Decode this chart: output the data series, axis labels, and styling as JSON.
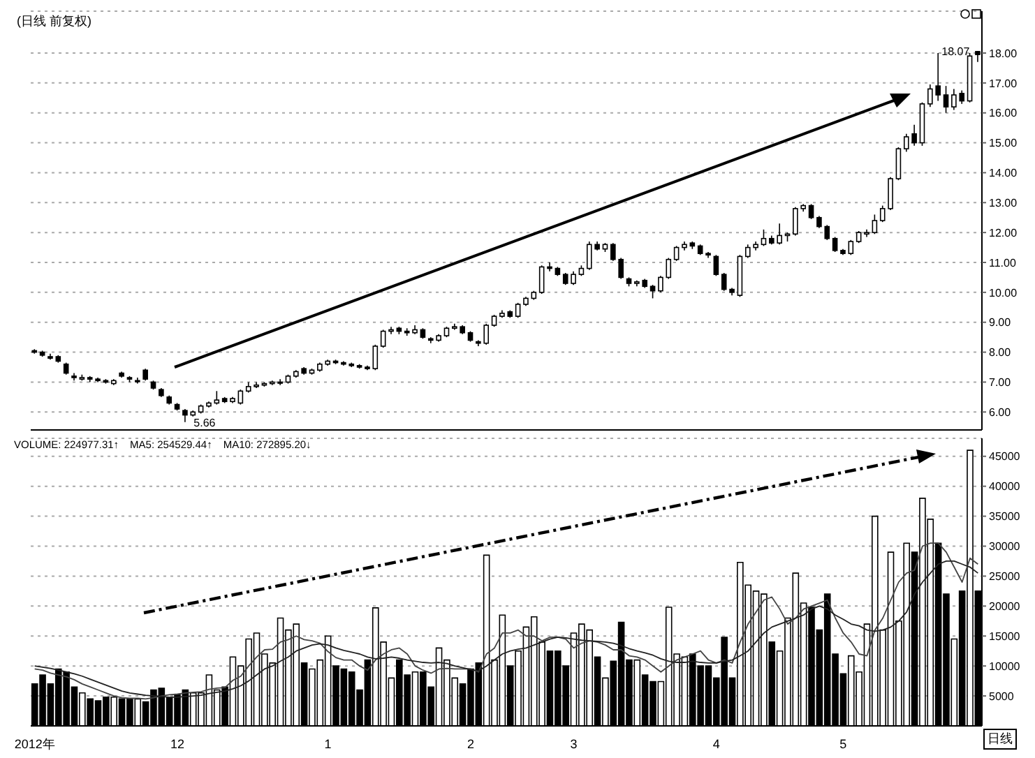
{
  "chart_data": [
    {
      "type": "candlestick",
      "title": "(日线 前复权)",
      "color": "#000000",
      "ohlc": [
        [
          8.05,
          8.1,
          7.95,
          8.0
        ],
        [
          8.0,
          8.05,
          7.85,
          7.9
        ],
        [
          7.85,
          7.95,
          7.75,
          7.8
        ],
        [
          7.85,
          7.9,
          7.65,
          7.7
        ],
        [
          7.6,
          7.65,
          7.25,
          7.3
        ],
        [
          7.2,
          7.3,
          7.05,
          7.15
        ],
        [
          7.1,
          7.25,
          7.05,
          7.15
        ],
        [
          7.15,
          7.2,
          7.0,
          7.1
        ],
        [
          7.1,
          7.15,
          7.0,
          7.05
        ],
        [
          7.05,
          7.1,
          6.95,
          7.0
        ],
        [
          6.95,
          7.1,
          6.9,
          7.05
        ],
        [
          7.3,
          7.35,
          7.15,
          7.2
        ],
        [
          7.15,
          7.2,
          7.0,
          7.1
        ],
        [
          7.05,
          7.15,
          6.95,
          7.05
        ],
        [
          7.4,
          7.45,
          7.05,
          7.1
        ],
        [
          7.0,
          7.05,
          6.75,
          6.8
        ],
        [
          6.75,
          6.8,
          6.5,
          6.55
        ],
        [
          6.5,
          6.55,
          6.25,
          6.3
        ],
        [
          6.25,
          6.3,
          6.05,
          6.1
        ],
        [
          6.05,
          6.1,
          5.66,
          5.9
        ],
        [
          5.9,
          6.05,
          5.85,
          6.0
        ],
        [
          6.0,
          6.25,
          5.95,
          6.2
        ],
        [
          6.2,
          6.35,
          6.15,
          6.3
        ],
        [
          6.3,
          6.7,
          6.25,
          6.4
        ],
        [
          6.45,
          6.5,
          6.3,
          6.35
        ],
        [
          6.35,
          6.5,
          6.3,
          6.45
        ],
        [
          6.3,
          6.75,
          6.25,
          6.7
        ],
        [
          6.7,
          7.0,
          6.65,
          6.85
        ],
        [
          6.85,
          7.0,
          6.8,
          6.9
        ],
        [
          6.9,
          7.0,
          6.85,
          6.95
        ],
        [
          6.95,
          7.05,
          6.9,
          7.0
        ],
        [
          7.0,
          7.1,
          6.9,
          7.0
        ],
        [
          7.0,
          7.25,
          6.95,
          7.2
        ],
        [
          7.2,
          7.4,
          7.15,
          7.35
        ],
        [
          7.45,
          7.5,
          7.25,
          7.3
        ],
        [
          7.3,
          7.45,
          7.25,
          7.4
        ],
        [
          7.4,
          7.65,
          7.35,
          7.6
        ],
        [
          7.6,
          7.75,
          7.55,
          7.7
        ],
        [
          7.7,
          7.75,
          7.6,
          7.65
        ],
        [
          7.65,
          7.7,
          7.55,
          7.6
        ],
        [
          7.6,
          7.65,
          7.5,
          7.55
        ],
        [
          7.55,
          7.6,
          7.45,
          7.5
        ],
        [
          7.5,
          7.55,
          7.4,
          7.45
        ],
        [
          7.45,
          8.25,
          7.4,
          8.2
        ],
        [
          8.2,
          8.75,
          8.15,
          8.7
        ],
        [
          8.7,
          8.85,
          8.6,
          8.75
        ],
        [
          8.8,
          8.85,
          8.6,
          8.7
        ],
        [
          8.7,
          8.8,
          8.55,
          8.65
        ],
        [
          8.65,
          8.9,
          8.6,
          8.75
        ],
        [
          8.75,
          8.8,
          8.45,
          8.5
        ],
        [
          8.45,
          8.5,
          8.3,
          8.4
        ],
        [
          8.4,
          8.6,
          8.35,
          8.55
        ],
        [
          8.55,
          8.85,
          8.5,
          8.8
        ],
        [
          8.8,
          8.95,
          8.75,
          8.85
        ],
        [
          8.85,
          8.9,
          8.6,
          8.65
        ],
        [
          8.65,
          8.7,
          8.35,
          8.4
        ],
        [
          8.35,
          8.4,
          8.2,
          8.3
        ],
        [
          8.3,
          8.95,
          8.25,
          8.9
        ],
        [
          8.9,
          9.25,
          8.85,
          9.2
        ],
        [
          9.2,
          9.4,
          9.15,
          9.3
        ],
        [
          9.35,
          9.4,
          9.15,
          9.2
        ],
        [
          9.2,
          9.65,
          9.15,
          9.6
        ],
        [
          9.6,
          9.85,
          9.55,
          9.8
        ],
        [
          9.8,
          10.05,
          9.75,
          10.0
        ],
        [
          10.0,
          10.9,
          9.95,
          10.85
        ],
        [
          10.85,
          11.0,
          10.7,
          10.8
        ],
        [
          10.8,
          10.85,
          10.55,
          10.6
        ],
        [
          10.6,
          10.65,
          10.25,
          10.3
        ],
        [
          10.3,
          10.7,
          10.25,
          10.6
        ],
        [
          10.6,
          10.9,
          10.55,
          10.8
        ],
        [
          10.8,
          11.7,
          10.75,
          11.6
        ],
        [
          11.6,
          11.7,
          11.4,
          11.45
        ],
        [
          11.45,
          11.65,
          11.35,
          11.6
        ],
        [
          11.6,
          11.65,
          11.05,
          11.1
        ],
        [
          11.1,
          11.15,
          10.45,
          10.5
        ],
        [
          10.45,
          10.5,
          10.2,
          10.3
        ],
        [
          10.3,
          10.4,
          10.2,
          10.35
        ],
        [
          10.4,
          10.45,
          10.15,
          10.2
        ],
        [
          10.2,
          10.25,
          9.8,
          10.05
        ],
        [
          10.05,
          10.55,
          10.0,
          10.5
        ],
        [
          10.5,
          11.15,
          10.45,
          11.1
        ],
        [
          11.1,
          11.55,
          11.05,
          11.5
        ],
        [
          11.5,
          11.7,
          11.4,
          11.6
        ],
        [
          11.65,
          11.7,
          11.45,
          11.55
        ],
        [
          11.55,
          11.6,
          11.25,
          11.3
        ],
        [
          11.3,
          11.35,
          11.15,
          11.25
        ],
        [
          11.2,
          11.25,
          10.55,
          10.6
        ],
        [
          10.6,
          10.65,
          10.05,
          10.1
        ],
        [
          10.1,
          10.15,
          9.9,
          10.0
        ],
        [
          9.9,
          11.25,
          9.85,
          11.2
        ],
        [
          11.2,
          11.6,
          11.15,
          11.5
        ],
        [
          11.5,
          11.7,
          11.4,
          11.6
        ],
        [
          11.6,
          12.1,
          11.55,
          11.8
        ],
        [
          11.8,
          11.9,
          11.6,
          11.65
        ],
        [
          11.65,
          12.3,
          11.6,
          11.9
        ],
        [
          11.9,
          12.0,
          11.7,
          11.95
        ],
        [
          11.95,
          12.85,
          11.9,
          12.8
        ],
        [
          12.8,
          12.95,
          12.7,
          12.9
        ],
        [
          12.9,
          12.95,
          12.45,
          12.5
        ],
        [
          12.5,
          12.55,
          12.15,
          12.2
        ],
        [
          12.2,
          12.25,
          11.75,
          11.8
        ],
        [
          11.8,
          11.85,
          11.35,
          11.4
        ],
        [
          11.4,
          11.45,
          11.25,
          11.3
        ],
        [
          11.3,
          11.75,
          11.25,
          11.7
        ],
        [
          11.7,
          12.05,
          11.65,
          12.0
        ],
        [
          11.95,
          12.1,
          11.85,
          12.0
        ],
        [
          12.0,
          12.6,
          11.95,
          12.4
        ],
        [
          12.4,
          12.9,
          12.35,
          12.8
        ],
        [
          12.8,
          13.85,
          12.75,
          13.8
        ],
        [
          13.8,
          14.85,
          13.75,
          14.8
        ],
        [
          14.8,
          15.3,
          14.7,
          15.2
        ],
        [
          15.3,
          15.6,
          14.9,
          15.0
        ],
        [
          15.0,
          16.35,
          14.9,
          16.3
        ],
        [
          16.3,
          16.95,
          16.2,
          16.8
        ],
        [
          16.9,
          18.0,
          16.4,
          16.6
        ],
        [
          16.6,
          16.9,
          16.0,
          16.2
        ],
        [
          16.2,
          16.8,
          16.1,
          16.6
        ],
        [
          16.65,
          16.75,
          16.3,
          16.4
        ],
        [
          16.4,
          18.0,
          16.35,
          17.9
        ],
        [
          18.05,
          18.07,
          17.7,
          17.95
        ]
      ],
      "ylim": [
        5.4,
        19.4
      ],
      "yticks": [
        {
          "value": 6,
          "label": "6.00"
        },
        {
          "value": 7,
          "label": "7.00"
        },
        {
          "value": 8,
          "label": "8.00"
        },
        {
          "value": 9,
          "label": "9.00"
        },
        {
          "value": 10,
          "label": "10.00"
        },
        {
          "value": 11,
          "label": "11.00"
        },
        {
          "value": 12,
          "label": "12.00"
        },
        {
          "value": 13,
          "label": "13.00"
        },
        {
          "value": 14,
          "label": "14.00"
        },
        {
          "value": 15,
          "label": "15.00"
        },
        {
          "value": 16,
          "label": "16.00"
        },
        {
          "value": 17,
          "label": "17.00"
        },
        {
          "value": 18,
          "label": "18.00"
        }
      ],
      "grid": "y",
      "tick_labels": "y",
      "annotations": [
        "5.66",
        "18.07"
      ]
    },
    {
      "type": "bar",
      "categories": [
        "2012年",
        null,
        null,
        null,
        null,
        null,
        null,
        null,
        null,
        null,
        null,
        null,
        null,
        null,
        null,
        null,
        null,
        null,
        "12",
        null,
        null,
        null,
        null,
        null,
        null,
        null,
        null,
        null,
        null,
        null,
        null,
        null,
        null,
        null,
        null,
        null,
        null,
        "1",
        null,
        null,
        null,
        null,
        null,
        null,
        null,
        null,
        null,
        null,
        null,
        null,
        null,
        null,
        null,
        null,
        null,
        "2",
        null,
        null,
        null,
        null,
        null,
        null,
        null,
        null,
        null,
        null,
        null,
        null,
        "3",
        null,
        null,
        null,
        null,
        null,
        null,
        null,
        null,
        null,
        null,
        null,
        null,
        null,
        null,
        null,
        null,
        null,
        "4",
        null,
        null,
        null,
        null,
        null,
        null,
        null,
        null,
        null,
        null,
        null,
        null,
        null,
        null,
        null,
        "5",
        null,
        null,
        null,
        null,
        null,
        null,
        null,
        null,
        null,
        null,
        null,
        null,
        null,
        null,
        null,
        null,
        null
      ],
      "series": [
        {
          "type": "bar",
          "color": "#000000",
          "values": [
            7000,
            8500,
            7000,
            9500,
            9000,
            6500,
            5500,
            4500,
            4200,
            4800,
            4800,
            4500,
            4500,
            4500,
            4000,
            6000,
            6300,
            4800,
            5200,
            6000,
            5500,
            5500,
            8500,
            6000,
            6500,
            11500,
            10000,
            14500,
            15500,
            12000,
            10500,
            18000,
            16000,
            17000,
            10500,
            9500,
            11000,
            15000,
            10000,
            9500,
            9000,
            6000,
            11000,
            19700,
            14000,
            8000,
            11000,
            8500,
            9000,
            9000,
            6500,
            13000,
            11000,
            8000,
            7000,
            9500,
            10500,
            28500,
            11000,
            18500,
            10000,
            12500,
            16500,
            18200,
            14000,
            12500,
            12500,
            10000,
            15500,
            17000,
            16000,
            11500,
            8000,
            10800,
            17300,
            11000,
            11000,
            8500,
            7400,
            7400,
            19800,
            12000,
            11500,
            12000,
            10000,
            10000,
            8000,
            14800,
            8000,
            27300,
            23500,
            22500,
            22000,
            14000,
            12500,
            18000,
            25500,
            20500,
            19800,
            16000,
            22000,
            12000,
            8700,
            11700,
            9000,
            17000,
            35000,
            16000,
            29000,
            17500,
            30500,
            29000,
            38000,
            34500,
            30500,
            22000,
            14500,
            22500,
            46000,
            22500
          ]
        },
        {
          "type": "line",
          "color": "#444444",
          "values": [
            9500,
            9300,
            8800,
            8500,
            8200,
            7700,
            7000,
            6500,
            6000,
            5500,
            5000,
            4700,
            4600,
            4600,
            4500,
            4700,
            5000,
            5200,
            5300,
            5500,
            5600,
            5700,
            6100,
            6300,
            6400,
            7600,
            8300,
            10000,
            11500,
            12700,
            12800,
            14000,
            14400,
            15000,
            14400,
            14200,
            13800,
            12400,
            11400,
            11000,
            11000,
            10000,
            9300,
            11000,
            12000,
            12700,
            13000,
            12000,
            10000,
            9300,
            8800,
            9500,
            9600,
            9500,
            9500,
            9500,
            9000,
            12000,
            13000,
            15500,
            15500,
            16000,
            15000,
            15000,
            14200,
            14800,
            14800,
            14500,
            13000,
            13800,
            14200,
            14000,
            13500,
            12700,
            12700,
            11700,
            11500,
            11000,
            10000,
            9000,
            10000,
            11000,
            11500,
            12000,
            12500,
            11000,
            10500,
            11000,
            10500,
            14000,
            17000,
            19000,
            21000,
            21500,
            19500,
            17000,
            18000,
            19500,
            20000,
            20500,
            21000,
            18000,
            15500,
            14000,
            12000,
            11700,
            16000,
            18000,
            21000,
            24000,
            25500,
            26000,
            30000,
            30500,
            30500,
            29000,
            26500,
            24000,
            28000,
            27000
          ]
        },
        {
          "type": "line",
          "color": "#222222",
          "values": [
            10000,
            9800,
            9600,
            9300,
            9000,
            8700,
            8300,
            7800,
            7300,
            6800,
            6300,
            5800,
            5500,
            5300,
            5100,
            5000,
            4900,
            4800,
            4800,
            4900,
            5000,
            5100,
            5400,
            5600,
            5800,
            6200,
            6700,
            7500,
            8500,
            9500,
            10000,
            10800,
            11500,
            12500,
            13000,
            13500,
            13700,
            13500,
            13000,
            12600,
            12300,
            12000,
            11500,
            11200,
            11300,
            11500,
            11300,
            11000,
            10800,
            10600,
            10500,
            10600,
            10400,
            10000,
            9700,
            9400,
            9200,
            10000,
            11000,
            12000,
            12500,
            12800,
            13000,
            13500,
            14000,
            14500,
            14800,
            14700,
            14500,
            14300,
            14200,
            14100,
            14000,
            13800,
            13400,
            12900,
            12500,
            12200,
            11800,
            11200,
            10800,
            10600,
            10600,
            10800,
            10600,
            10500,
            10500,
            10800,
            11000,
            11700,
            12500,
            14000,
            15500,
            16500,
            17000,
            17500,
            18000,
            18500,
            19500,
            20000,
            19500,
            18500,
            17800,
            17000,
            16700,
            16000,
            15800,
            16000,
            16500,
            17500,
            19000,
            22000,
            24000,
            25500,
            27000,
            27500,
            27500,
            27000,
            26500,
            25500
          ]
        }
      ],
      "ylim": [
        0,
        48000
      ],
      "yticks": [
        5000,
        10000,
        15000,
        20000,
        25000,
        30000,
        35000,
        40000,
        45000
      ],
      "grid": "y",
      "annotations": [
        "VOLUME: 224977.31↑",
        "MA5: 254529.44↑",
        "MA10: 272895.20↓",
        "日线"
      ]
    }
  ]
}
